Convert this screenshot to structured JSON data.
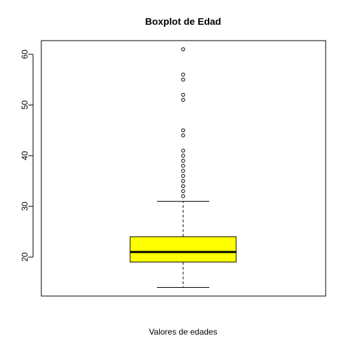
{
  "chart_data": {
    "type": "boxplot",
    "title": "Boxplot de Edad",
    "xlabel": "Valores de edades",
    "ylabel": "",
    "ylim": [
      12.3,
      62.7
    ],
    "yticks": [
      20,
      30,
      40,
      50,
      60
    ],
    "box": {
      "whisker_low": 14,
      "q1": 19,
      "median": 21,
      "q3": 24,
      "whisker_high": 31,
      "fill": "#ffff00"
    },
    "outliers": [
      32,
      33,
      34,
      35,
      36,
      37,
      38,
      39,
      40,
      41,
      44,
      45,
      51,
      52,
      55,
      56,
      61
    ]
  }
}
